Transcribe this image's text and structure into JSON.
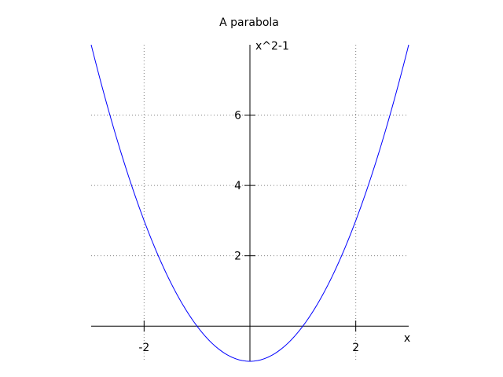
{
  "chart_data": {
    "type": "line",
    "title": "A parabola",
    "xlabel": "x",
    "ylabel": "x^2-1",
    "xlim": [
      -3,
      3
    ],
    "ylim": [
      -1,
      8
    ],
    "x_ticks": [
      -2,
      2
    ],
    "x_tick_labels": [
      "-2",
      "2"
    ],
    "y_ticks": [
      2,
      4,
      6
    ],
    "y_tick_labels": [
      "2",
      "4",
      "6"
    ],
    "grid": true,
    "axes_through_origin": true,
    "series": [
      {
        "function": "x^2-1",
        "color": "#0000ff",
        "x": [
          -3,
          -2.5,
          -2,
          -1.5,
          -1,
          -0.5,
          0,
          0.5,
          1,
          1.5,
          2,
          2.5,
          3
        ],
        "y": [
          8,
          5.25,
          3,
          1.25,
          0,
          -0.75,
          -1,
          -0.75,
          0,
          1.25,
          3,
          5.25,
          8
        ]
      }
    ]
  }
}
